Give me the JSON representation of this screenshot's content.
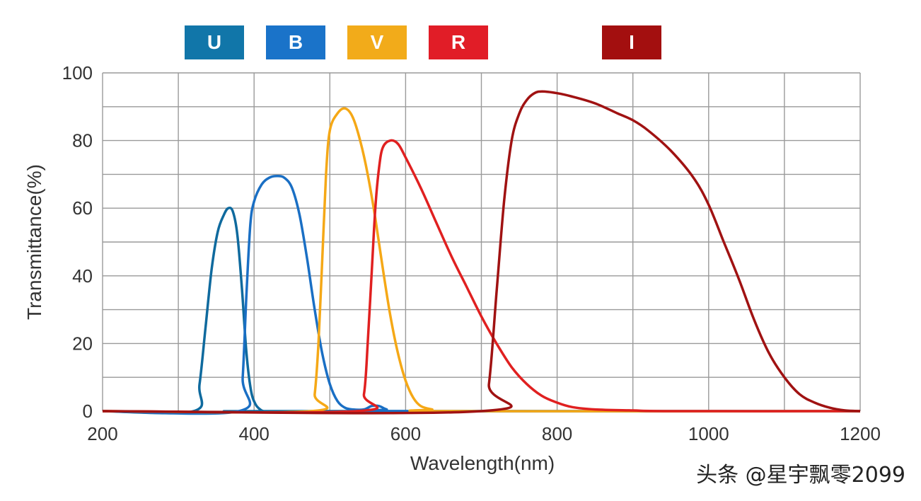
{
  "chart_data": {
    "type": "line",
    "xlabel": "Wavelength(nm)",
    "ylabel": "Transmittance(%)",
    "xlim": [
      200,
      1200
    ],
    "ylim": [
      0,
      100
    ],
    "x_ticks": [
      "200",
      "400",
      "600",
      "800",
      "1000",
      "1200"
    ],
    "y_ticks": [
      "0",
      "20",
      "40",
      "60",
      "80",
      "100"
    ],
    "grid": true,
    "legend_position": "top",
    "series": [
      {
        "name": "U",
        "color": "#0f6a9e",
        "x": [
          320,
          328,
          336,
          344,
          352,
          360,
          366,
          372,
          378,
          384,
          390,
          396,
          402,
          408,
          412,
          420
        ],
        "y": [
          0,
          8,
          25,
          42,
          53,
          58,
          60,
          59,
          52,
          36,
          17,
          6,
          2,
          0.5,
          0,
          0
        ]
      },
      {
        "name": "B",
        "color": "#1a6fc4",
        "x": [
          380,
          385,
          390,
          395,
          400,
          410,
          420,
          430,
          440,
          450,
          460,
          470,
          480,
          490,
          500,
          510,
          520,
          530,
          545,
          555,
          565,
          575,
          590
        ],
        "y": [
          0,
          10,
          35,
          55,
          62,
          67,
          69,
          69.5,
          69,
          66,
          58,
          45,
          30,
          17,
          8,
          3,
          1,
          0.5,
          0.5,
          1.5,
          1.5,
          0.5,
          0
        ]
      },
      {
        "name": "V",
        "color": "#f5a816",
        "x": [
          475,
          480,
          485,
          490,
          495,
          500,
          510,
          520,
          530,
          540,
          550,
          560,
          570,
          580,
          590,
          600,
          610,
          620,
          635,
          650
        ],
        "y": [
          0,
          5,
          20,
          45,
          70,
          83,
          88,
          89.5,
          87,
          80,
          70,
          57,
          42,
          28,
          17,
          9,
          4,
          1.5,
          0.5,
          0
        ]
      },
      {
        "name": "R",
        "color": "#e02020",
        "x": [
          535,
          545,
          550,
          555,
          560,
          565,
          570,
          580,
          590,
          600,
          620,
          640,
          660,
          680,
          700,
          720,
          740,
          760,
          780,
          800,
          820,
          850,
          900,
          950
        ],
        "y": [
          0,
          5,
          20,
          40,
          60,
          72,
          78,
          80,
          79,
          75,
          66,
          56,
          46,
          37,
          28,
          20,
          13,
          8,
          4.5,
          2.5,
          1.2,
          0.5,
          0.2,
          0
        ]
      },
      {
        "name": "I",
        "color": "#a01212",
        "x": [
          700,
          710,
          720,
          730,
          740,
          750,
          760,
          770,
          780,
          800,
          820,
          850,
          880,
          900,
          920,
          950,
          980,
          1000,
          1020,
          1040,
          1060,
          1080,
          1100,
          1120,
          1140,
          1160,
          1180,
          1200
        ],
        "y": [
          0,
          8,
          35,
          62,
          80,
          88,
          92,
          94,
          94.5,
          94,
          93,
          91,
          88,
          86,
          83,
          77,
          69,
          61,
          50,
          39,
          27,
          17,
          10,
          5,
          2.5,
          1,
          0.2,
          0
        ]
      }
    ]
  },
  "legend": [
    {
      "label": "U",
      "color": "#1176a9"
    },
    {
      "label": "B",
      "color": "#1a73c9"
    },
    {
      "label": "V",
      "color": "#f2ab1a"
    },
    {
      "label": "R",
      "color": "#e11d27"
    },
    {
      "label": "I",
      "color": "#a30f0f"
    }
  ],
  "watermark": "头条 @星宇飘零2099"
}
